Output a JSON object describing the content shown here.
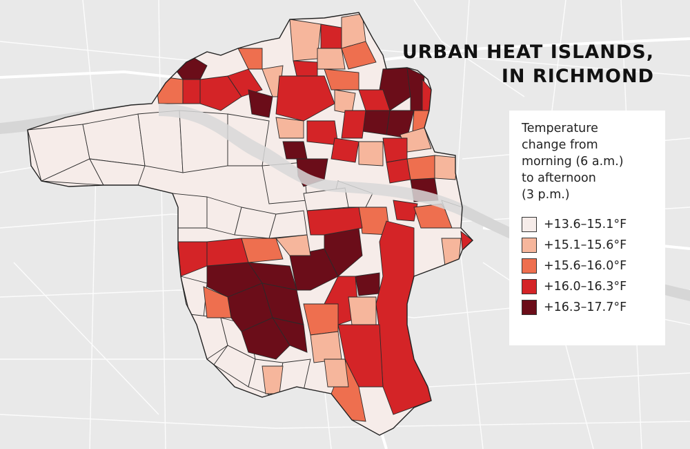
{
  "title": {
    "lines": [
      "URBAN HEAT ISLANDS,",
      "IN RICHMOND"
    ]
  },
  "legend": {
    "heading_lines": [
      "Temperature",
      "change from",
      "morning (6 a.m.)",
      "to afternoon",
      "(3 p.m.)"
    ],
    "classes": [
      {
        "label": "+13.6–15.1°F",
        "color": "#f6ece9"
      },
      {
        "label": "+15.1–15.6°F",
        "color": "#f6b69c"
      },
      {
        "label": "+15.6–16.0°F",
        "color": "#ee6f4f"
      },
      {
        "label": "+16.0–16.3°F",
        "color": "#d42427"
      },
      {
        "label": "+16.3–17.7°F",
        "color": "#6b0d19"
      }
    ]
  },
  "map": {
    "background_color": "#e9e9e9",
    "road_color": "#ffffff",
    "river_color": "#d6d6d6",
    "boundary_color": "#222222"
  }
}
